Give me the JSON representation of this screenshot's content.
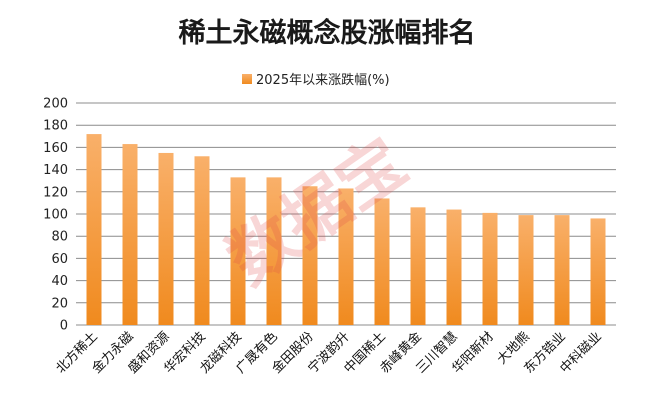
{
  "chart_data": {
    "type": "bar",
    "title": "稀土永磁概念股涨幅排名",
    "legend": [
      "2025年以来涨跌幅(%)"
    ],
    "categories": [
      "北方稀土",
      "金力永磁",
      "盛和资源",
      "华宏科技",
      "龙磁科技",
      "广晟有色",
      "金田股份",
      "宁波韵升",
      "中国稀土",
      "赤峰黄金",
      "三川智慧",
      "华阳新材",
      "大地熊",
      "东方锆业",
      "中科磁业"
    ],
    "series": [
      {
        "name": "2025年以来涨跌幅(%)",
        "values": [
          172,
          163,
          155,
          152,
          133,
          133,
          125,
          123,
          114,
          106,
          104,
          101,
          99,
          99,
          96
        ]
      }
    ],
    "yticks": [
      "0",
      "20",
      "40",
      "60",
      "80",
      "100",
      "120",
      "140",
      "160",
      "180",
      "200"
    ],
    "ylim": [
      0,
      200
    ],
    "grid": true,
    "legend_position": "top",
    "bar_color": "#f08a1e",
    "bar_color_light": "#f9b06a"
  },
  "watermark": "数据宝"
}
